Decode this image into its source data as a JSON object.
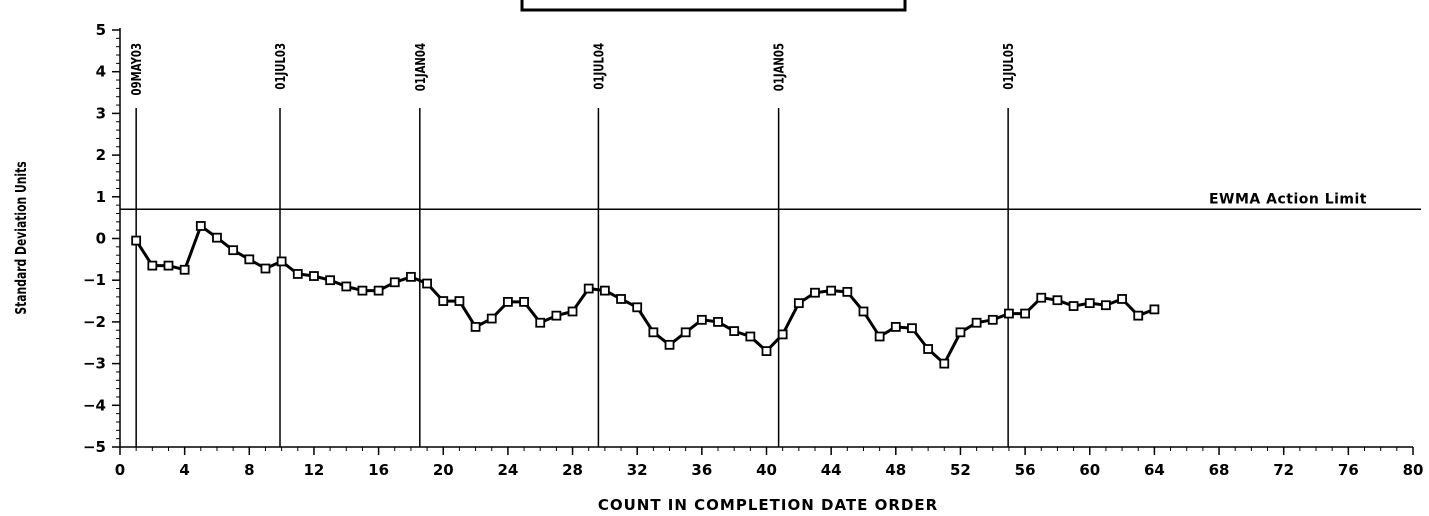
{
  "chart_data": {
    "type": "line",
    "title": "",
    "xlabel": "COUNT IN COMPLETION DATE ORDER",
    "ylabel": "Standard Deviation Units",
    "xlim": [
      0,
      80
    ],
    "ylim": [
      -5,
      5
    ],
    "x_ticks": [
      0,
      4,
      8,
      12,
      16,
      20,
      24,
      28,
      32,
      36,
      40,
      44,
      48,
      52,
      56,
      60,
      64,
      68,
      72,
      76,
      80
    ],
    "y_ticks": [
      5,
      4,
      3,
      2,
      1,
      0,
      -1,
      -2,
      -3,
      -4,
      -5
    ],
    "y_tick_labels": [
      "5",
      "4",
      "3",
      "2",
      "1",
      "0",
      "−1",
      "−2",
      "−3",
      "−4",
      "−5"
    ],
    "grid": false,
    "marker": "square",
    "series": [
      {
        "x": [
          1,
          2,
          3,
          4,
          5,
          6,
          7,
          8,
          9,
          10,
          11,
          12,
          13,
          14,
          15,
          16,
          17,
          18,
          19,
          20,
          21,
          22,
          23,
          24,
          25,
          26,
          27,
          28,
          29,
          30,
          31,
          32,
          33,
          34,
          35,
          36,
          37,
          38,
          39,
          40,
          41,
          42,
          43,
          44,
          45,
          46,
          47,
          48,
          49,
          50,
          51,
          52,
          53,
          54,
          55,
          56,
          57,
          58,
          59,
          60,
          61,
          62,
          63,
          64
        ],
        "values": [
          -0.05,
          -0.65,
          -0.65,
          -0.75,
          0.3,
          0.02,
          -0.28,
          -0.5,
          -0.72,
          -0.55,
          -0.85,
          -0.9,
          -1.0,
          -1.15,
          -1.25,
          -1.25,
          -1.05,
          -0.92,
          -1.08,
          -1.5,
          -1.5,
          -2.12,
          -1.92,
          -1.52,
          -1.52,
          -2.02,
          -1.85,
          -1.75,
          -1.2,
          -1.25,
          -1.45,
          -1.65,
          -2.25,
          -2.55,
          -2.25,
          -1.95,
          -2.0,
          -2.22,
          -2.35,
          -2.7,
          -2.3,
          -1.55,
          -1.3,
          -1.25,
          -1.28,
          -1.75,
          -2.35,
          -2.12,
          -2.15,
          -2.65,
          -3.0,
          -2.25,
          -2.02,
          -1.95,
          -1.8,
          -1.8,
          -1.42,
          -1.48,
          -1.62,
          -1.55,
          -1.6,
          -1.45,
          -1.85,
          -1.7
        ]
      }
    ],
    "reference_lines": {
      "horizontal": [
        {
          "y": 0.7,
          "label": "EWMA Action Limit"
        }
      ],
      "vertical": [
        {
          "x": 1.0,
          "label": "09MAY03"
        },
        {
          "x": 9.9,
          "label": "01JUL03"
        },
        {
          "x": 18.55,
          "label": "01JAN04"
        },
        {
          "x": 29.6,
          "label": "01JUL04"
        },
        {
          "x": 40.75,
          "label": "01JAN05"
        },
        {
          "x": 54.95,
          "label": "01JUL05"
        }
      ]
    },
    "colors": {
      "line": "#000000",
      "marker_fill": "#ffffff",
      "axis": "#000000"
    }
  }
}
